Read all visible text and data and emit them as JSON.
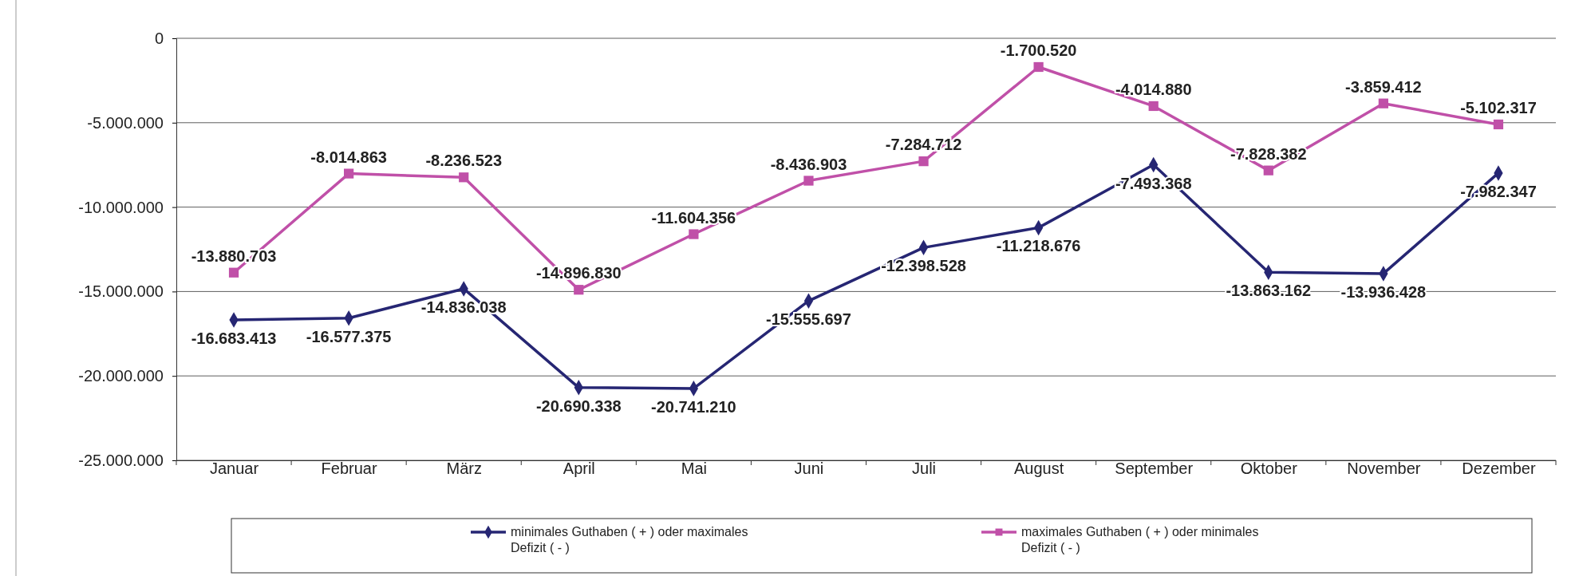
{
  "chart_data": {
    "type": "line",
    "categories": [
      "Januar",
      "Februar",
      "März",
      "April",
      "Mai",
      "Juni",
      "Juli",
      "August",
      "September",
      "Oktober",
      "November",
      "Dezember"
    ],
    "ylim": [
      -25000000,
      0
    ],
    "yticks": [
      {
        "value": -25000000,
        "label": "-25.000.000"
      },
      {
        "value": -20000000,
        "label": "-20.000.000"
      },
      {
        "value": -15000000,
        "label": "-15.000.000"
      },
      {
        "value": -10000000,
        "label": "-10.000.000"
      },
      {
        "value": -5000000,
        "label": "-5.000.000"
      },
      {
        "value": 0,
        "label": "0"
      }
    ],
    "grid": "y",
    "legend": "bottom",
    "series": [
      {
        "name": "minimales Guthaben ( + ) oder maximales Defizit ( - )",
        "color": "#262673",
        "marker": "diamond",
        "values": [
          -16683413,
          -16577375,
          -14836038,
          -20690338,
          -20741210,
          -15555697,
          -12398528,
          -11218676,
          -7493368,
          -13863162,
          -13936428,
          -7982347
        ],
        "value_labels": [
          "-16.683.413",
          "-16.577.375",
          "-14.836.038",
          "-20.690.338",
          "-20.741.210",
          "-15.555.697",
          "-12.398.528",
          "-11.218.676",
          "-7.493.368",
          "-13.863.162",
          "-13.936.428",
          "-7.982.347"
        ]
      },
      {
        "name": "maximales Guthaben ( + ) oder minimales Defizit ( - )",
        "color": "#c050a8",
        "marker": "square",
        "values": [
          -13880703,
          -8014863,
          -8236523,
          -14896830,
          -11604356,
          -8436903,
          -7284712,
          -1700520,
          -4014880,
          -7828382,
          -3859412,
          -5102317
        ],
        "value_labels": [
          "-13.880.703",
          "-8.014.863",
          "-8.236.523",
          "-14.896.830",
          "-11.604.356",
          "-8.436.903",
          "-7.284.712",
          "-1.700.520",
          "-4.014.880",
          "-7.828.382",
          "-3.859.412",
          "-5.102.317"
        ]
      }
    ]
  }
}
